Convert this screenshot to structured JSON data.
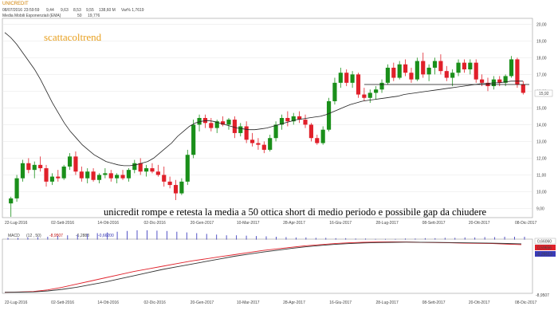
{
  "header": {
    "symbol": "UNICREDIT",
    "date": "08/07/2016",
    "time": "23:59:59",
    "o": "9,44",
    "h": "9,63",
    "l": "8,53",
    "c": "9,55",
    "v": "138,60 M",
    "var": "Var% 1,7619",
    "indicator_label": "Media Mobili Esponenziali (EMA)",
    "indicator_period": "50",
    "indicator_value": "19,776"
  },
  "watermark": "scattacoltrend",
  "annotation": "unicredit rompe e retesta la media a 50 ottica short di medio periodo e possibile gap da chiudere",
  "price_axis": {
    "ticks": [
      "20,00",
      "19,00",
      "18,00",
      "17,00",
      "16,00",
      "15,00",
      "14,00",
      "13,00",
      "12,00",
      "11,00",
      "10,00",
      "9,00"
    ],
    "last_price": "15,92"
  },
  "date_axis": [
    "22-Lug-2016",
    "02-Sett-2016",
    "14-Ott-2016",
    "02-Dic-2016",
    "20-Gen-2017",
    "10-Mar-2017",
    "28-Apr-2017",
    "16-Giu-2017",
    "28-Lug-2017",
    "08-Sett-2017",
    "20-Ott-2017",
    "08-Dic-2017"
  ],
  "macd_header": {
    "label": "MACD",
    "params": "(12 , 50)",
    "v1": "-8,9507",
    "v2": "-6,2888",
    "v3": "-0,66200"
  },
  "macd_axis": {
    "bottom": "-8,9507",
    "badge_top": "0,66060",
    "badge_mid": "0,59656",
    "badge_bot": "-0,26613"
  },
  "colors": {
    "up": "#1a8f1a",
    "down": "#e0202a",
    "ema": "#222222",
    "macd": "#e0202a",
    "signal": "#333333",
    "hist": "#4040c0",
    "watermark": "#e8a020"
  },
  "chart_data": [
    {
      "type": "candlestick",
      "title": "UNICREDIT",
      "ylim": [
        8.5,
        20.3
      ],
      "yticks": [
        9,
        10,
        11,
        12,
        13,
        14,
        15,
        16,
        17,
        18,
        19,
        20
      ],
      "ohlc": [
        [
          9.3,
          9.7,
          8.5,
          9.6
        ],
        [
          9.6,
          11.0,
          9.4,
          10.8
        ],
        [
          10.8,
          11.9,
          10.6,
          11.7
        ],
        [
          11.7,
          12.0,
          11.1,
          11.3
        ],
        [
          11.3,
          11.8,
          10.8,
          11.6
        ],
        [
          11.6,
          12.1,
          11.2,
          11.4
        ],
        [
          11.4,
          11.6,
          10.3,
          10.6
        ],
        [
          10.6,
          11.1,
          10.4,
          10.9
        ],
        [
          10.9,
          11.3,
          10.6,
          10.8
        ],
        [
          10.8,
          11.6,
          10.7,
          11.5
        ],
        [
          11.5,
          12.3,
          11.3,
          12.1
        ],
        [
          12.1,
          12.4,
          11.0,
          11.2
        ],
        [
          11.2,
          11.5,
          10.6,
          10.8
        ],
        [
          10.8,
          11.4,
          10.5,
          11.2
        ],
        [
          11.2,
          11.4,
          10.6,
          10.7
        ],
        [
          10.7,
          11.1,
          10.5,
          11.0
        ],
        [
          11.0,
          11.4,
          10.8,
          11.1
        ],
        [
          11.1,
          11.3,
          10.6,
          10.8
        ],
        [
          10.8,
          11.1,
          10.5,
          11.0
        ],
        [
          11.0,
          11.3,
          10.7,
          10.8
        ],
        [
          10.8,
          11.4,
          10.6,
          11.3
        ],
        [
          11.3,
          11.9,
          11.1,
          11.7
        ],
        [
          11.7,
          12.0,
          11.0,
          11.2
        ],
        [
          11.2,
          11.6,
          10.9,
          11.4
        ],
        [
          11.4,
          11.7,
          11.1,
          11.2
        ],
        [
          11.2,
          11.6,
          10.9,
          11.0
        ],
        [
          11.0,
          11.5,
          10.3,
          10.6
        ],
        [
          10.6,
          10.9,
          10.2,
          10.4
        ],
        [
          10.4,
          10.7,
          9.5,
          9.9
        ],
        [
          9.9,
          10.8,
          9.8,
          10.6
        ],
        [
          10.6,
          12.5,
          10.4,
          12.2
        ],
        [
          12.2,
          14.3,
          12.0,
          14.0
        ],
        [
          14.0,
          14.6,
          13.6,
          14.4
        ],
        [
          14.4,
          14.6,
          13.8,
          14.1
        ],
        [
          14.1,
          14.4,
          13.6,
          13.8
        ],
        [
          13.8,
          14.3,
          13.5,
          14.2
        ],
        [
          14.2,
          14.5,
          13.9,
          14.0
        ],
        [
          14.0,
          14.4,
          13.7,
          14.3
        ],
        [
          14.3,
          14.5,
          13.2,
          13.5
        ],
        [
          13.5,
          14.1,
          13.3,
          13.9
        ],
        [
          13.9,
          14.2,
          12.9,
          13.1
        ],
        [
          13.1,
          13.5,
          12.7,
          12.9
        ],
        [
          12.9,
          13.2,
          12.5,
          12.8
        ],
        [
          12.8,
          13.0,
          12.3,
          12.5
        ],
        [
          12.5,
          13.4,
          12.4,
          13.2
        ],
        [
          13.2,
          14.2,
          13.0,
          14.0
        ],
        [
          14.0,
          14.6,
          13.7,
          14.4
        ],
        [
          14.4,
          14.8,
          13.9,
          14.2
        ],
        [
          14.2,
          14.7,
          14.0,
          14.5
        ],
        [
          14.5,
          14.8,
          14.1,
          14.3
        ],
        [
          14.3,
          14.6,
          13.8,
          14.0
        ],
        [
          14.0,
          14.1,
          13.0,
          13.2
        ],
        [
          13.2,
          13.4,
          12.8,
          12.9
        ],
        [
          12.9,
          13.9,
          12.8,
          13.7
        ],
        [
          13.7,
          15.6,
          13.6,
          15.4
        ],
        [
          15.4,
          16.8,
          15.2,
          16.5
        ],
        [
          16.5,
          17.4,
          16.2,
          17.1
        ],
        [
          17.1,
          17.3,
          16.3,
          16.5
        ],
        [
          16.5,
          17.2,
          16.2,
          17.0
        ],
        [
          17.0,
          17.1,
          15.6,
          15.8
        ],
        [
          15.8,
          16.2,
          15.4,
          15.6
        ],
        [
          15.6,
          16.1,
          15.3,
          15.9
        ],
        [
          15.9,
          16.3,
          15.5,
          16.1
        ],
        [
          16.1,
          16.7,
          15.9,
          16.5
        ],
        [
          16.5,
          17.6,
          16.4,
          17.4
        ],
        [
          17.4,
          17.7,
          16.6,
          16.8
        ],
        [
          16.8,
          17.8,
          16.7,
          17.6
        ],
        [
          17.6,
          17.9,
          16.9,
          17.1
        ],
        [
          17.1,
          17.4,
          16.5,
          16.7
        ],
        [
          16.7,
          18.0,
          16.6,
          17.8
        ],
        [
          17.8,
          18.3,
          16.8,
          17.0
        ],
        [
          17.0,
          17.6,
          16.6,
          17.4
        ],
        [
          17.4,
          18.0,
          17.0,
          17.8
        ],
        [
          17.8,
          18.2,
          17.0,
          17.2
        ],
        [
          17.2,
          17.5,
          16.6,
          16.8
        ],
        [
          16.8,
          17.3,
          16.3,
          17.1
        ],
        [
          17.1,
          17.9,
          16.9,
          17.7
        ],
        [
          17.7,
          17.9,
          17.1,
          17.3
        ],
        [
          17.3,
          17.9,
          17.0,
          17.7
        ],
        [
          17.7,
          17.9,
          16.5,
          16.7
        ],
        [
          16.7,
          17.0,
          16.3,
          16.5
        ],
        [
          16.5,
          16.8,
          16.0,
          16.3
        ],
        [
          16.3,
          16.9,
          16.1,
          16.7
        ],
        [
          16.7,
          16.9,
          16.3,
          16.5
        ],
        [
          16.5,
          17.0,
          16.3,
          16.9
        ],
        [
          16.9,
          18.1,
          16.8,
          17.9
        ],
        [
          17.9,
          18.0,
          16.2,
          16.4
        ],
        [
          16.4,
          16.6,
          15.8,
          15.9
        ]
      ],
      "ema_50": [
        19.5,
        19.2,
        18.8,
        18.3,
        17.8,
        17.3,
        16.7,
        16.0,
        15.3,
        14.7,
        14.1,
        13.6,
        13.2,
        12.8,
        12.5,
        12.2,
        12.0,
        11.8,
        11.7,
        11.6,
        11.55,
        11.55,
        11.6,
        11.7,
        11.8,
        12.0,
        12.3,
        12.6,
        12.9,
        13.3,
        13.6,
        13.9,
        14.1,
        14.2,
        14.25,
        14.2,
        14.1,
        14.0,
        13.9,
        13.8,
        13.75,
        13.7,
        13.7,
        13.75,
        13.8,
        13.9,
        14.0,
        14.1,
        14.2,
        14.3,
        14.35,
        14.4,
        14.45,
        14.5,
        14.6,
        14.75,
        14.9,
        15.05,
        15.2,
        15.3,
        15.4,
        15.45,
        15.5,
        15.55,
        15.6,
        15.65,
        15.7,
        15.8,
        15.85,
        15.9,
        15.95,
        16.0,
        16.05,
        16.1,
        16.15,
        16.2,
        16.25,
        16.3,
        16.35,
        16.4,
        16.45,
        16.45,
        16.5,
        16.5,
        16.55,
        16.6,
        16.6,
        16.6
      ],
      "support_level": 16.4,
      "last_price": 15.92
    },
    {
      "type": "line",
      "title": "MACD (12 , 50)",
      "series": [
        {
          "name": "MACD",
          "values": [
            -8.95,
            -8.9,
            -8.8,
            -8.5,
            -8.0,
            -7.4,
            -6.8,
            -6.2,
            -5.6,
            -5.0,
            -4.5,
            -4.0,
            -3.5,
            -3.0,
            -2.6,
            -2.2,
            -1.8,
            -1.4,
            -1.0,
            -0.7,
            -0.4,
            -0.1,
            0.1,
            0.3,
            0.45,
            0.55,
            0.6,
            0.62,
            0.6,
            0.55,
            0.5,
            0.45,
            0.4,
            0.35,
            0.3,
            0.2,
            0.1
          ]
        },
        {
          "name": "Signal",
          "values": [
            -8.95,
            -8.93,
            -8.88,
            -8.7,
            -8.4,
            -8.0,
            -7.5,
            -7.0,
            -6.4,
            -5.8,
            -5.2,
            -4.6,
            -4.1,
            -3.6,
            -3.1,
            -2.6,
            -2.1,
            -1.7,
            -1.3,
            -0.95,
            -0.6,
            -0.3,
            -0.05,
            0.15,
            0.3,
            0.42,
            0.5,
            0.55,
            0.57,
            0.56,
            0.53,
            0.5,
            0.46,
            0.42,
            0.38,
            0.32,
            0.25
          ]
        }
      ],
      "hist_values": [
        0.05,
        0.05,
        0.06,
        0.07,
        0.08,
        0.1,
        0.12,
        0.14,
        0.16,
        0.18,
        0.2,
        0.22,
        0.24,
        0.26,
        0.26,
        0.25,
        0.24,
        0.22,
        0.2,
        0.18,
        0.16,
        0.14,
        0.12,
        0.12,
        0.11,
        0.1,
        0.09,
        0.08,
        0.07,
        0.06,
        0.06,
        0.05,
        0.05,
        0.04,
        0.04,
        0.03,
        0.03,
        0.02,
        0.02,
        0.02,
        0.03,
        0.03,
        0.04,
        0.04,
        0.05,
        0.05,
        0.06,
        0.06,
        0.07,
        0.07,
        0.08,
        0.08,
        0.08
      ],
      "ylim": [
        -9.0,
        1.0
      ]
    }
  ]
}
